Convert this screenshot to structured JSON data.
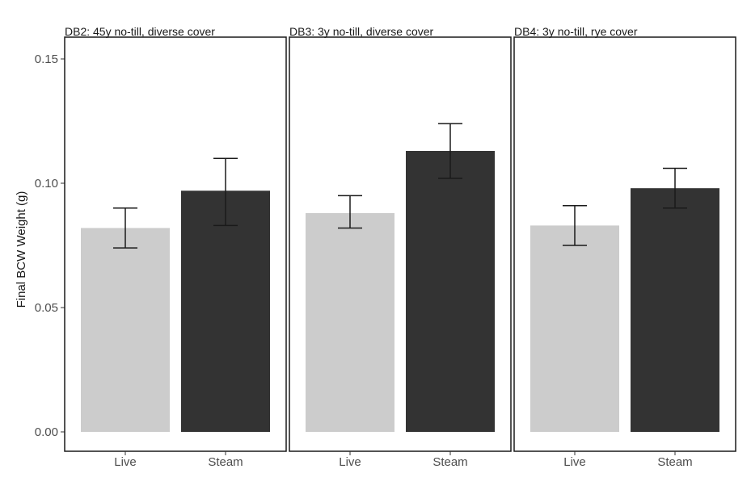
{
  "chart_data": {
    "type": "bar",
    "ylabel": "Final BCW Weight (g)",
    "ylim": [
      0,
      0.155
    ],
    "yticks": [
      0.0,
      0.05,
      0.1,
      0.15
    ],
    "ytick_labels": [
      "0.00",
      "0.05",
      "0.10",
      "0.15"
    ],
    "categories": [
      "Live",
      "Steam"
    ],
    "colors": {
      "Live": "#cccccc",
      "Steam": "#333333"
    },
    "grid": false,
    "panels": [
      {
        "title": "DB2: 45y no-till, diverse cover",
        "bars": [
          {
            "category": "Live",
            "value": 0.082,
            "err_low": 0.074,
            "err_high": 0.09
          },
          {
            "category": "Steam",
            "value": 0.097,
            "err_low": 0.083,
            "err_high": 0.11
          }
        ]
      },
      {
        "title": "DB3: 3y no-till, diverse cover",
        "bars": [
          {
            "category": "Live",
            "value": 0.088,
            "err_low": 0.082,
            "err_high": 0.095
          },
          {
            "category": "Steam",
            "value": 0.113,
            "err_low": 0.102,
            "err_high": 0.124
          }
        ]
      },
      {
        "title": "DB4: 3y no-till, rye cover",
        "bars": [
          {
            "category": "Live",
            "value": 0.083,
            "err_low": 0.075,
            "err_high": 0.091
          },
          {
            "category": "Steam",
            "value": 0.098,
            "err_low": 0.09,
            "err_high": 0.106
          }
        ]
      }
    ]
  }
}
